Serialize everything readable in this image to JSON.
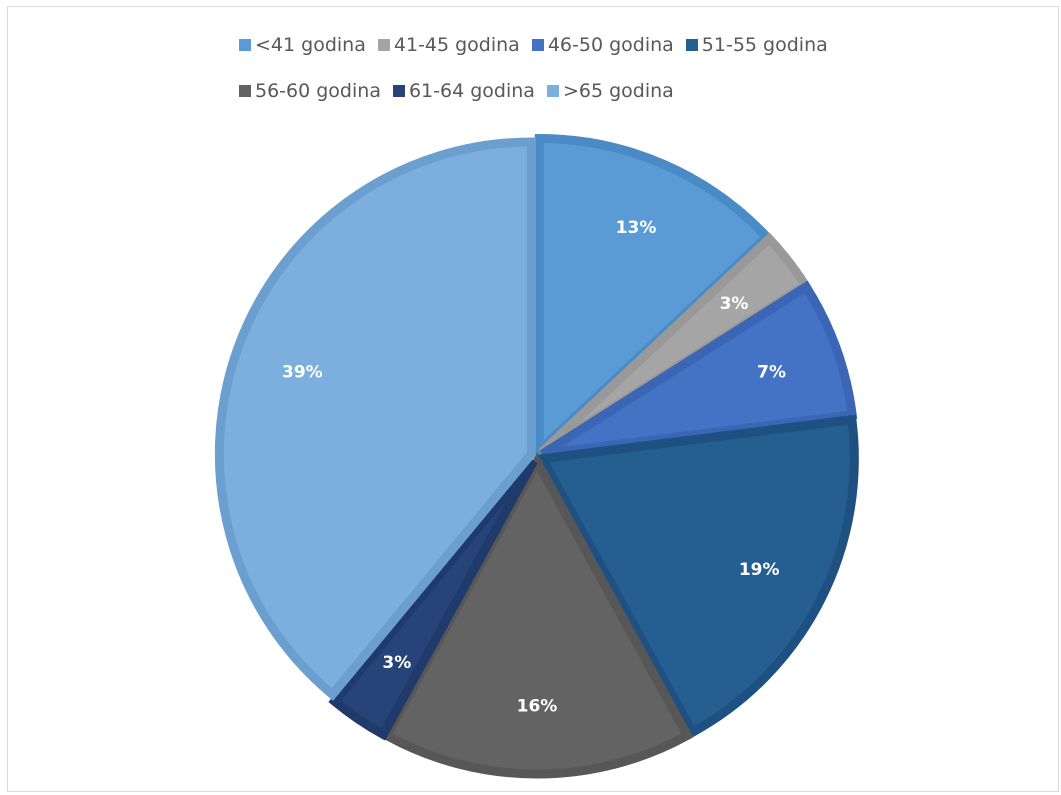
{
  "chart_data": {
    "type": "pie",
    "categories": [
      "<41 godina",
      "41-45 godina",
      "46-50 godina",
      "51-55 godina",
      "56-60 godina",
      "61-64 godina",
      ">65 godina"
    ],
    "values": [
      13,
      3,
      7,
      19,
      16,
      3,
      39
    ],
    "labels": [
      "13%",
      "3%",
      "7%",
      "19%",
      "16%",
      "3%",
      "39%"
    ],
    "colors": [
      "#5b9bd5",
      "#a5a5a5",
      "#4472c4",
      "#255e91",
      "#636363",
      "#264478",
      "#7cafdd"
    ],
    "border_colors": [
      "#4a8ac6",
      "#999999",
      "#3a66b5",
      "#1e5182",
      "#575757",
      "#1f3b6b",
      "#6a9fd0"
    ],
    "legend_position": "top"
  },
  "legend": {
    "row1": [
      {
        "label": "<41 godina",
        "color": "#5b9bd5"
      },
      {
        "label": "41-45 godina",
        "color": "#a5a5a5"
      },
      {
        "label": "46-50 godina",
        "color": "#4472c4"
      },
      {
        "label": "51-55 godina",
        "color": "#255e91"
      }
    ],
    "row2": [
      {
        "label": "56-60 godina",
        "color": "#636363"
      },
      {
        "label": "61-64 godina",
        "color": "#264478"
      },
      {
        "label": ">65 godina",
        "color": "#7cafdd"
      }
    ]
  }
}
